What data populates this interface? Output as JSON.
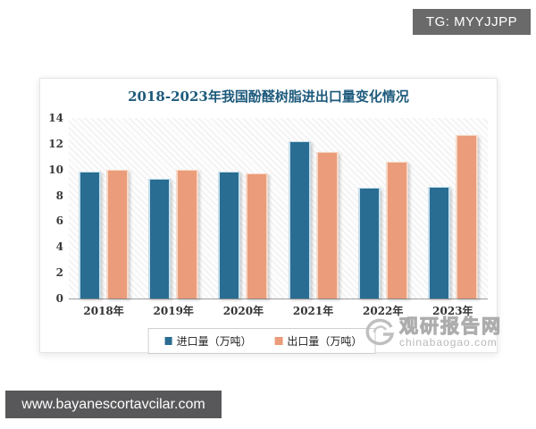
{
  "badges": {
    "tg": "TG: MYYJJPP",
    "site": "www.bayanescortavcilar.com"
  },
  "watermark": {
    "brand": "观研报告网",
    "domain": "chinabaogao.com"
  },
  "chart_data": {
    "type": "bar",
    "title": "2018-2023年我国酚醛树脂进出口量变化情况",
    "title_color": "#1d5a7c",
    "categories": [
      "2018年",
      "2019年",
      "2020年",
      "2021年",
      "2022年",
      "2023年"
    ],
    "series": [
      {
        "name": "进口量（万吨）",
        "color": "#2a6d92",
        "outline": "#c8e0ee",
        "values": [
          9.8,
          9.2,
          9.8,
          12.1,
          8.5,
          8.6
        ]
      },
      {
        "name": "出口量（万吨）",
        "color": "#eb9c7a",
        "outline": "#f7d9c8",
        "values": [
          9.9,
          9.9,
          9.6,
          11.3,
          10.5,
          12.6
        ]
      }
    ],
    "xlabel": "",
    "ylabel": "",
    "ylim": [
      0,
      14
    ],
    "ytick_step": 2,
    "grid": false,
    "legend_position": "bottom"
  }
}
